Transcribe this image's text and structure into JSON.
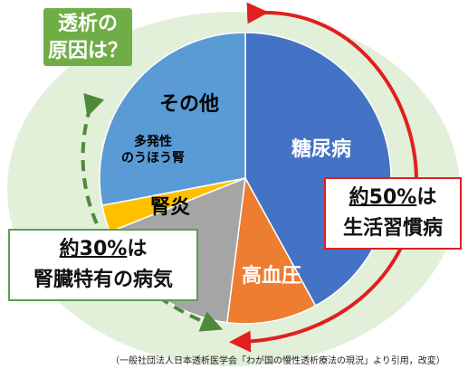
{
  "title_lines": [
    "透析の",
    "原因は？"
  ],
  "chart_data": {
    "type": "pie",
    "unit": "%",
    "slices": [
      {
        "label": "糖尿病",
        "value": 42,
        "color": "#4472c4",
        "label_color": "#ffffff"
      },
      {
        "label": "高血圧",
        "value": 10,
        "color": "#ed7d31",
        "label_color": "#ffffff"
      },
      {
        "label": "腎炎",
        "value": 17,
        "color": "#a5a5a5",
        "label_color": "#000000"
      },
      {
        "label": "多発性のうほう腎",
        "label_lines": [
          "多発性",
          "のうほう腎"
        ],
        "value": 3,
        "color": "#ffc000",
        "label_color": "#000000"
      },
      {
        "label": "その他",
        "value": 28,
        "color": "#5b9bd5",
        "label_color": "#000000"
      }
    ]
  },
  "callouts": {
    "lifestyle": {
      "value": "約50%",
      "suffix": "は",
      "line2": "生活習慣病",
      "color": "#e11f1f"
    },
    "kidney": {
      "value": "約30%",
      "suffix": "は",
      "line2": "腎臓特有の病気",
      "color": "#59a14f"
    }
  },
  "source_note": "（一般社団法人日本透析医学会「わが国の慢性透析療法の現況」より引用，改変）",
  "colors": {
    "background_disc": "#e2efd9",
    "title_bg": "#70ad47"
  }
}
